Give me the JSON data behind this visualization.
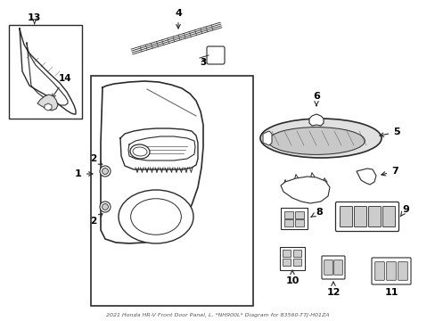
{
  "title": "2021 Honda HR-V Front Door Panel, L. *NH900L* Diagram for 83560-T7J-H01ZA",
  "bg_color": "#ffffff",
  "line_color": "#2a2a2a",
  "text_color": "#000000",
  "fig_width": 4.89,
  "fig_height": 3.6,
  "dpi": 100
}
